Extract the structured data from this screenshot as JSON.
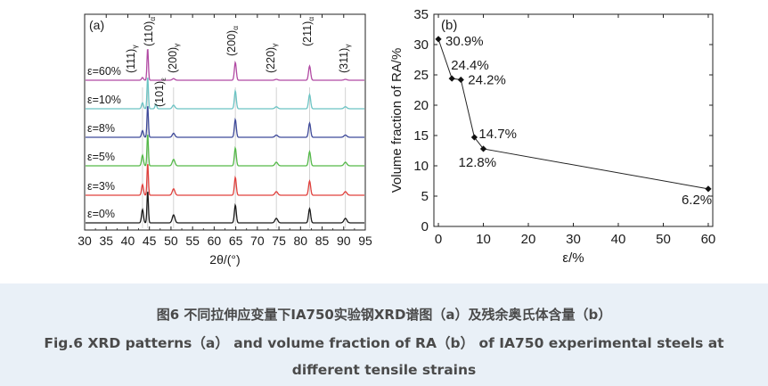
{
  "chart_data": [
    {
      "type": "line",
      "panel_label": "(a)",
      "xlabel": "2θ/(°)",
      "ylabel": "",
      "xlim": [
        30,
        95
      ],
      "x_ticks": [
        "30",
        "35",
        "40",
        "45",
        "50",
        "55",
        "60",
        "65",
        "70",
        "75",
        "80",
        "85",
        "90",
        "95"
      ],
      "peaks": [
        {
          "phase": "γ",
          "hkl": "111",
          "label": "(111)",
          "sub": "γ",
          "x": 43.4
        },
        {
          "phase": "α",
          "hkl": "110",
          "label": "(110)",
          "sub": "α",
          "x": 44.6
        },
        {
          "phase": "ε",
          "hkl": "101",
          "label": "(101)",
          "sub": "ε",
          "x": 46.5
        },
        {
          "phase": "γ",
          "hkl": "200",
          "label": "(200)",
          "sub": "γ",
          "x": 50.6
        },
        {
          "phase": "α",
          "hkl": "200",
          "label": "(200)",
          "sub": "α",
          "x": 64.9
        },
        {
          "phase": "γ",
          "hkl": "220",
          "label": "(220)",
          "sub": "γ",
          "x": 74.4
        },
        {
          "phase": "α",
          "hkl": "211",
          "label": "(211)",
          "sub": "α",
          "x": 82.1
        },
        {
          "phase": "γ",
          "hkl": "311",
          "label": "(311)",
          "sub": "γ",
          "x": 90.4
        }
      ],
      "series": [
        {
          "name": "ε=0%",
          "label": "ε=0%",
          "color": "#1a1a1a",
          "gamma_rel": 1.0,
          "alpha_rel": 1.0
        },
        {
          "name": "ε=3%",
          "label": "ε=3%",
          "color": "#e0403c",
          "gamma_rel": 0.8,
          "alpha_rel": 1.0
        },
        {
          "name": "ε=5%",
          "label": "ε=5%",
          "color": "#54b948",
          "gamma_rel": 0.8,
          "alpha_rel": 1.0
        },
        {
          "name": "ε=8%",
          "label": "ε=8%",
          "color": "#3f4a9a",
          "gamma_rel": 0.5,
          "alpha_rel": 1.0
        },
        {
          "name": "ε=10%",
          "label": "ε=10%",
          "color": "#6cc4c4",
          "gamma_rel": 0.45,
          "alpha_rel": 1.0
        },
        {
          "name": "ε=60%",
          "label": "ε=60%",
          "color": "#b14aa3",
          "gamma_rel": 0.2,
          "alpha_rel": 1.0
        }
      ]
    },
    {
      "type": "line",
      "panel_label": "(b)",
      "xlabel": "ε/%",
      "ylabel": "Volume fraction of RA/%",
      "xlim": [
        -1,
        61
      ],
      "ylim": [
        0,
        35
      ],
      "x_ticks": [
        "0",
        "10",
        "20",
        "30",
        "40",
        "50",
        "60"
      ],
      "y_ticks": [
        "0",
        "5",
        "10",
        "15",
        "20",
        "25",
        "30",
        "35"
      ],
      "series": [
        {
          "name": "RA",
          "x": [
            0,
            3,
            5,
            8,
            10,
            60
          ],
          "y": [
            30.9,
            24.4,
            24.2,
            14.7,
            12.8,
            6.2
          ],
          "labels": [
            "30.9%",
            "24.4%",
            "24.2%",
            "14.7%",
            "12.8%",
            "6.2%"
          ]
        }
      ]
    }
  ],
  "caption": {
    "cn": "图6 不同拉伸应变量下IA750实验钢XRD谱图（a）及残余奥氏体含量（b）",
    "en": "Fig.6 XRD patterns（a） and volume fraction of RA（b） of IA750 experimental steels at different tensile strains"
  }
}
